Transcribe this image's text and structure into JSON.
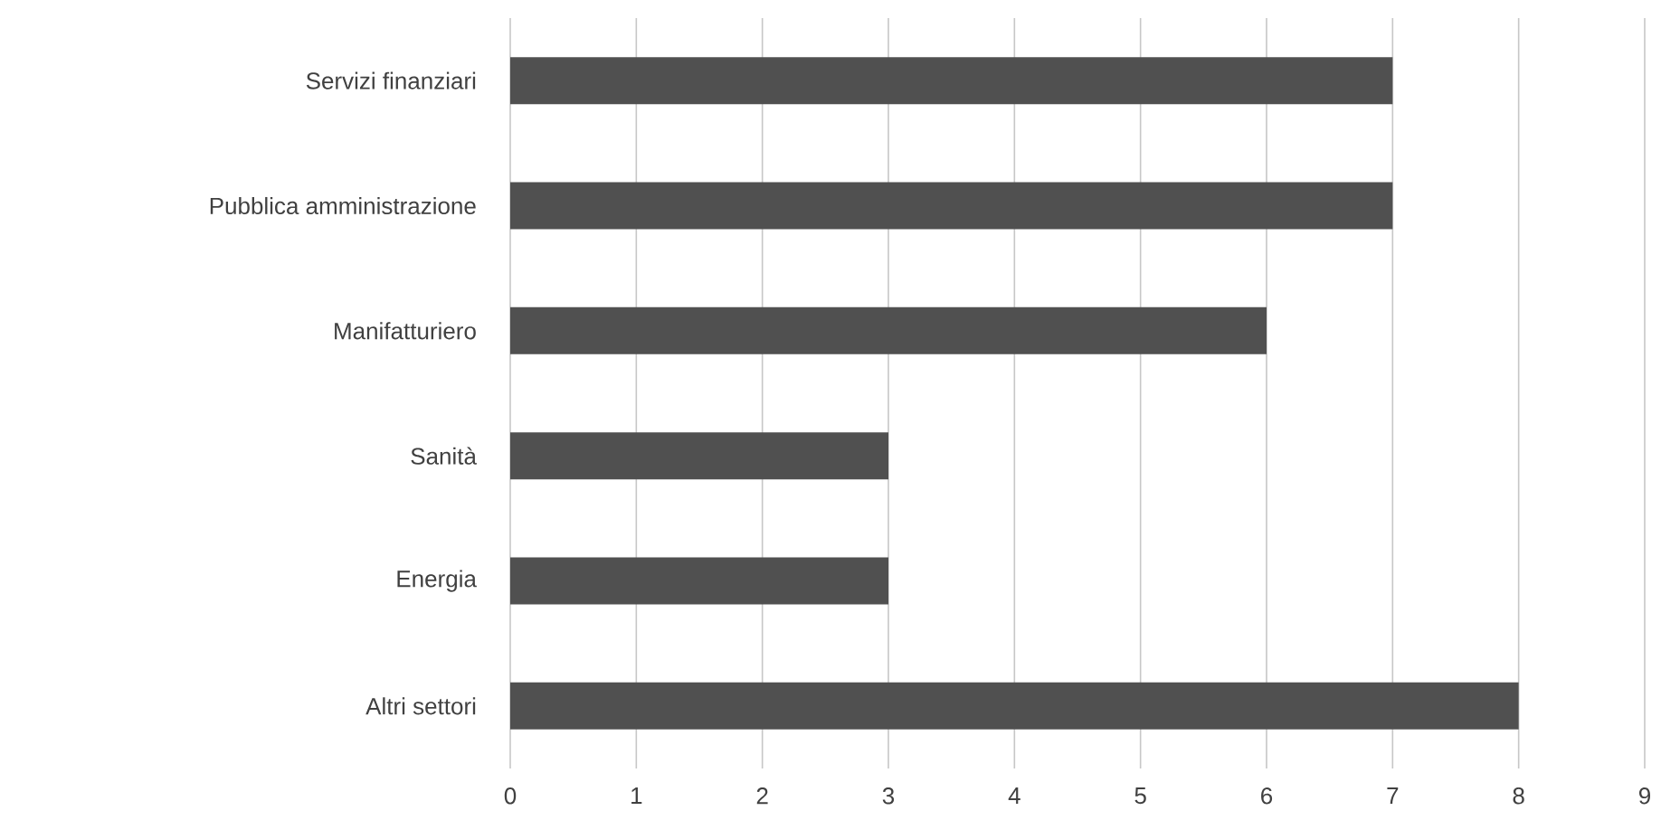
{
  "chart_data": {
    "type": "bar",
    "orientation": "horizontal",
    "categories": [
      "Servizi finanziari",
      "Pubblica amministrazione",
      "Manifatturiero",
      "Sanità",
      "Energia",
      "Altri settori"
    ],
    "values": [
      7,
      7,
      6,
      3,
      3,
      8
    ],
    "color": "#505050",
    "xlim": [
      0,
      9
    ],
    "xticks": [
      0,
      1,
      2,
      3,
      4,
      5,
      6,
      7,
      8,
      9
    ],
    "grid": "x"
  }
}
